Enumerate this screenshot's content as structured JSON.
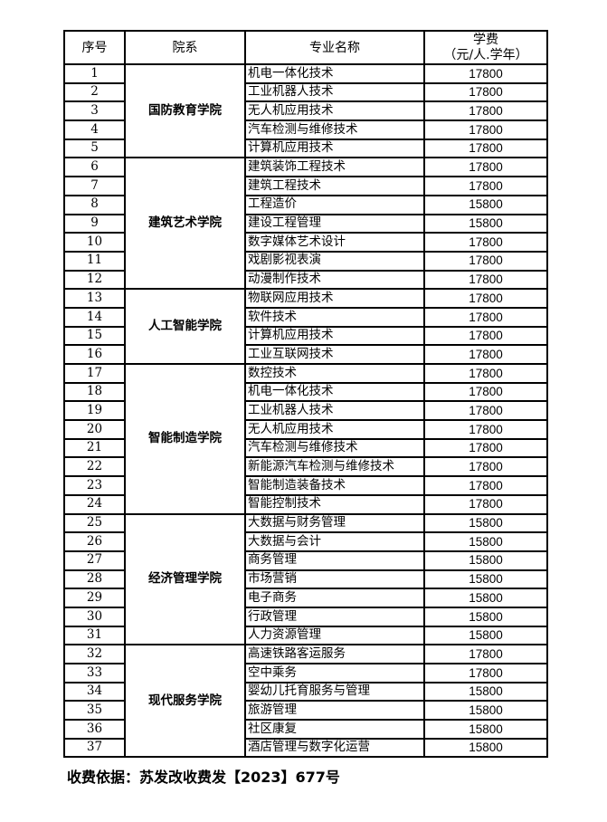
{
  "header": {
    "no": "序号",
    "dept": "院系",
    "major": "专业名称",
    "fee_line1": "学费",
    "fee_line2": "（元/人.学年）"
  },
  "groups": [
    {
      "dept": "国防教育学院",
      "rows": [
        {
          "no": "1",
          "major": "机电一体化技术",
          "fee": "17800"
        },
        {
          "no": "2",
          "major": "工业机器人技术",
          "fee": "17800"
        },
        {
          "no": "3",
          "major": "无人机应用技术",
          "fee": "17800"
        },
        {
          "no": "4",
          "major": "汽车检测与维修技术",
          "fee": "17800"
        },
        {
          "no": "5",
          "major": "计算机应用技术",
          "fee": "17800"
        }
      ]
    },
    {
      "dept": "建筑艺术学院",
      "rows": [
        {
          "no": "6",
          "major": "建筑装饰工程技术",
          "fee": "17800"
        },
        {
          "no": "7",
          "major": "建筑工程技术",
          "fee": "17800"
        },
        {
          "no": "8",
          "major": "工程造价",
          "fee": "15800"
        },
        {
          "no": "9",
          "major": "建设工程管理",
          "fee": "15800"
        },
        {
          "no": "10",
          "major": "数字媒体艺术设计",
          "fee": "17800"
        },
        {
          "no": "11",
          "major": "戏剧影视表演",
          "fee": "17800"
        },
        {
          "no": "12",
          "major": "动漫制作技术",
          "fee": "17800"
        }
      ]
    },
    {
      "dept": "人工智能学院",
      "rows": [
        {
          "no": "13",
          "major": "物联网应用技术",
          "fee": "17800"
        },
        {
          "no": "14",
          "major": "软件技术",
          "fee": "17800"
        },
        {
          "no": "15",
          "major": "计算机应用技术",
          "fee": "17800"
        },
        {
          "no": "16",
          "major": "工业互联网技术",
          "fee": "17800"
        }
      ]
    },
    {
      "dept": "智能制造学院",
      "rows": [
        {
          "no": "17",
          "major": "数控技术",
          "fee": "17800"
        },
        {
          "no": "18",
          "major": "机电一体化技术",
          "fee": "17800"
        },
        {
          "no": "19",
          "major": "工业机器人技术",
          "fee": "17800"
        },
        {
          "no": "20",
          "major": "无人机应用技术",
          "fee": "17800"
        },
        {
          "no": "21",
          "major": "汽车检测与维修技术",
          "fee": "17800"
        },
        {
          "no": "22",
          "major": "新能源汽车检测与维修技术",
          "fee": "17800"
        },
        {
          "no": "23",
          "major": "智能制造装备技术",
          "fee": "17800"
        },
        {
          "no": "24",
          "major": "智能控制技术",
          "fee": "17800"
        }
      ]
    },
    {
      "dept": "经济管理学院",
      "rows": [
        {
          "no": "25",
          "major": "大数据与财务管理",
          "fee": "15800"
        },
        {
          "no": "26",
          "major": "大数据与会计",
          "fee": "15800"
        },
        {
          "no": "27",
          "major": "商务管理",
          "fee": "15800"
        },
        {
          "no": "28",
          "major": "市场营销",
          "fee": "15800"
        },
        {
          "no": "29",
          "major": "电子商务",
          "fee": "15800"
        },
        {
          "no": "30",
          "major": "行政管理",
          "fee": "15800"
        },
        {
          "no": "31",
          "major": "人力资源管理",
          "fee": "15800"
        }
      ]
    },
    {
      "dept": "现代服务学院",
      "rows": [
        {
          "no": "32",
          "major": "高速铁路客运服务",
          "fee": "17800"
        },
        {
          "no": "33",
          "major": "空中乘务",
          "fee": "17800"
        },
        {
          "no": "34",
          "major": "婴幼儿托育服务与管理",
          "fee": "15800"
        },
        {
          "no": "35",
          "major": "旅游管理",
          "fee": "15800"
        },
        {
          "no": "36",
          "major": "社区康复",
          "fee": "15800"
        },
        {
          "no": "37",
          "major": "酒店管理与数字化运营",
          "fee": "15800"
        }
      ]
    }
  ],
  "note": "收费依据：苏发改收费发【2023】677号"
}
